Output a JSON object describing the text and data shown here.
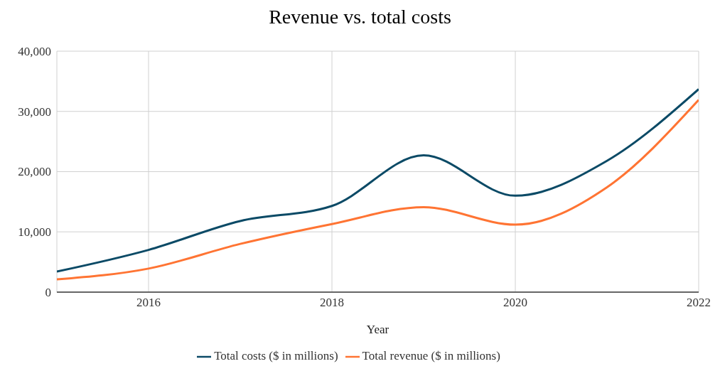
{
  "chart_data": {
    "type": "line",
    "title": "Revenue vs. total costs",
    "xlabel": "Year",
    "x": [
      2015,
      2016,
      2017,
      2018,
      2019,
      2020,
      2021,
      2022
    ],
    "series": [
      {
        "name": "Total revenue ($ in millions)",
        "color": "#ff7433",
        "values": [
          2100,
          3900,
          8000,
          11300,
          14100,
          11200,
          17400,
          31900
        ]
      },
      {
        "name": "Total costs ($ in millions)",
        "color": "#0b4a66",
        "values": [
          3400,
          7000,
          11800,
          14300,
          22700,
          16000,
          21800,
          33700
        ]
      }
    ],
    "xlim": [
      2015,
      2022
    ],
    "xticks": [
      2016,
      2018,
      2020,
      2022
    ],
    "ylim": [
      0,
      40000
    ],
    "yticks": [
      0,
      {
        "value": 10000,
        "label": "10,000"
      },
      {
        "value": 20000,
        "label": "20,000"
      },
      {
        "value": 30000,
        "label": "30,000"
      },
      {
        "value": 40000,
        "label": "40,000"
      }
    ],
    "grid": true,
    "legend": "bottom",
    "marker": "none",
    "line_style": "solid"
  }
}
